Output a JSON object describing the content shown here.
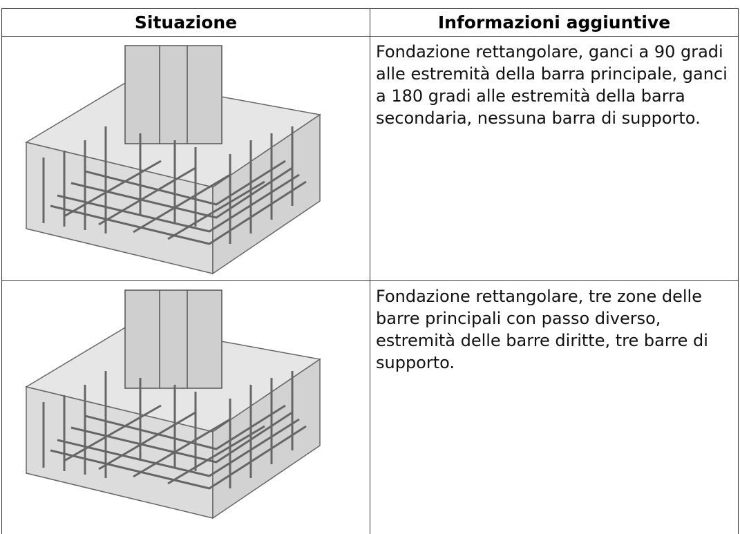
{
  "table": {
    "headers": [
      "Situazione",
      "Informazioni aggiuntive"
    ],
    "rows": [
      {
        "info": "Fondazione rettangolare, ganci a 90 gradi alle estremità della barra principale, ganci a 180 gradi alle estremità della barra secondaria, nessuna barra di supporto."
      },
      {
        "info": "Fondazione rettangolare, tre zone delle barre principali con passo diverso, estremità delle barre diritte, tre barre di supporto."
      }
    ]
  }
}
